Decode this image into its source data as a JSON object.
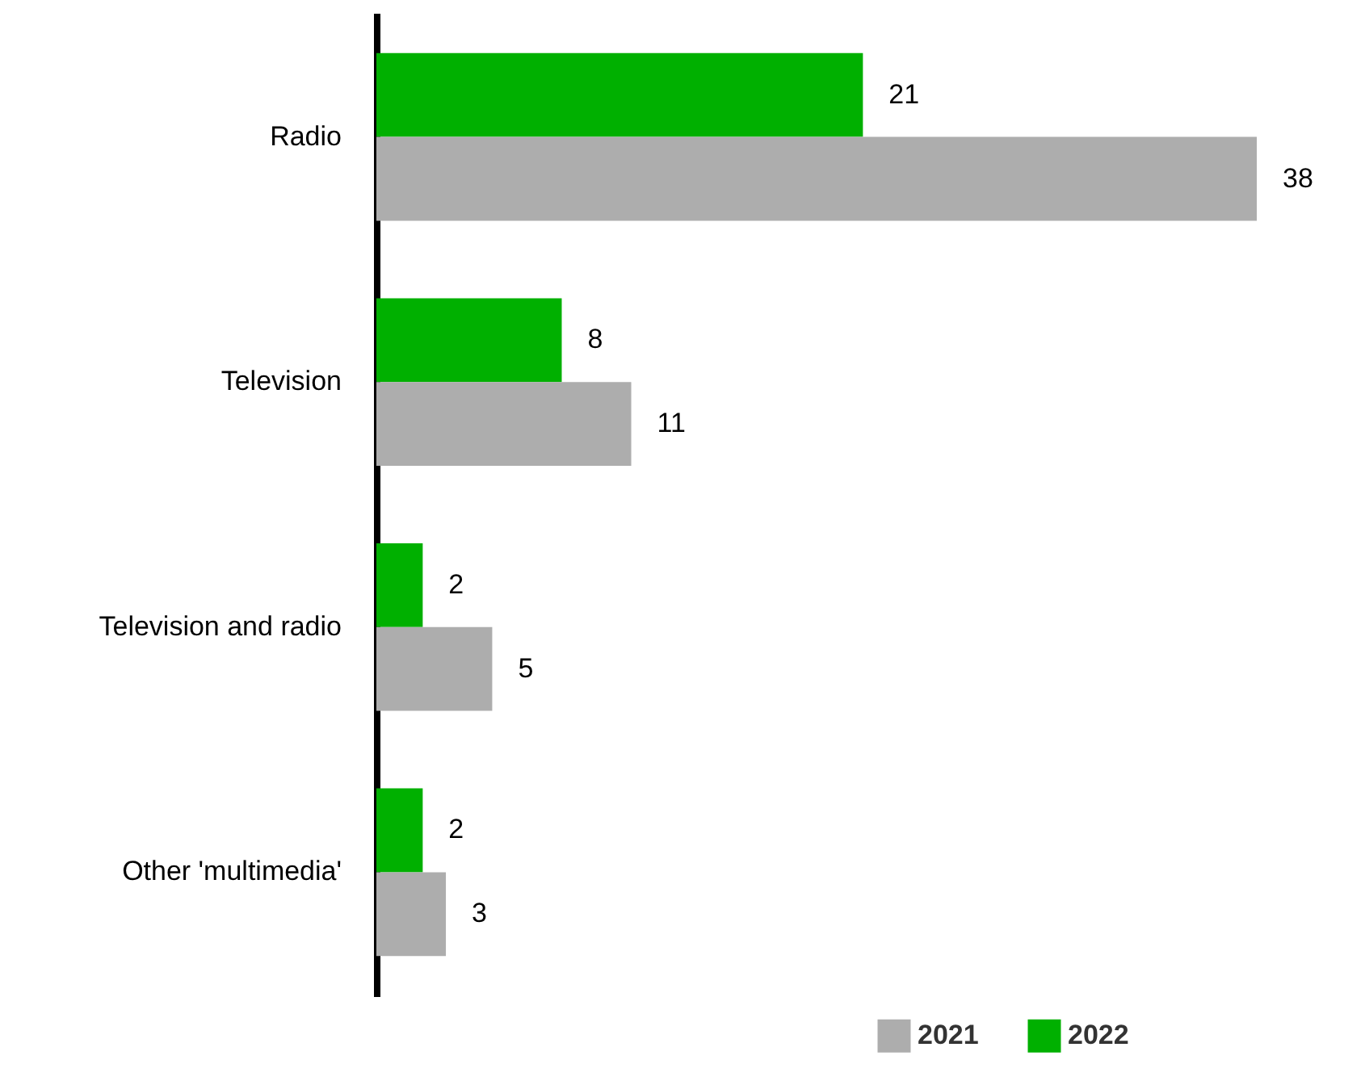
{
  "chart_data": {
    "type": "bar",
    "orientation": "horizontal",
    "categories": [
      "Radio",
      "Television",
      "Television and radio",
      "Other 'multimedia'"
    ],
    "series": [
      {
        "name": "2022",
        "color": "#00b000",
        "values": [
          21,
          8,
          2,
          2
        ]
      },
      {
        "name": "2021",
        "color": "#adadad",
        "values": [
          38,
          11,
          5,
          3
        ]
      }
    ],
    "data_labels": true,
    "legend": "bottom right"
  }
}
